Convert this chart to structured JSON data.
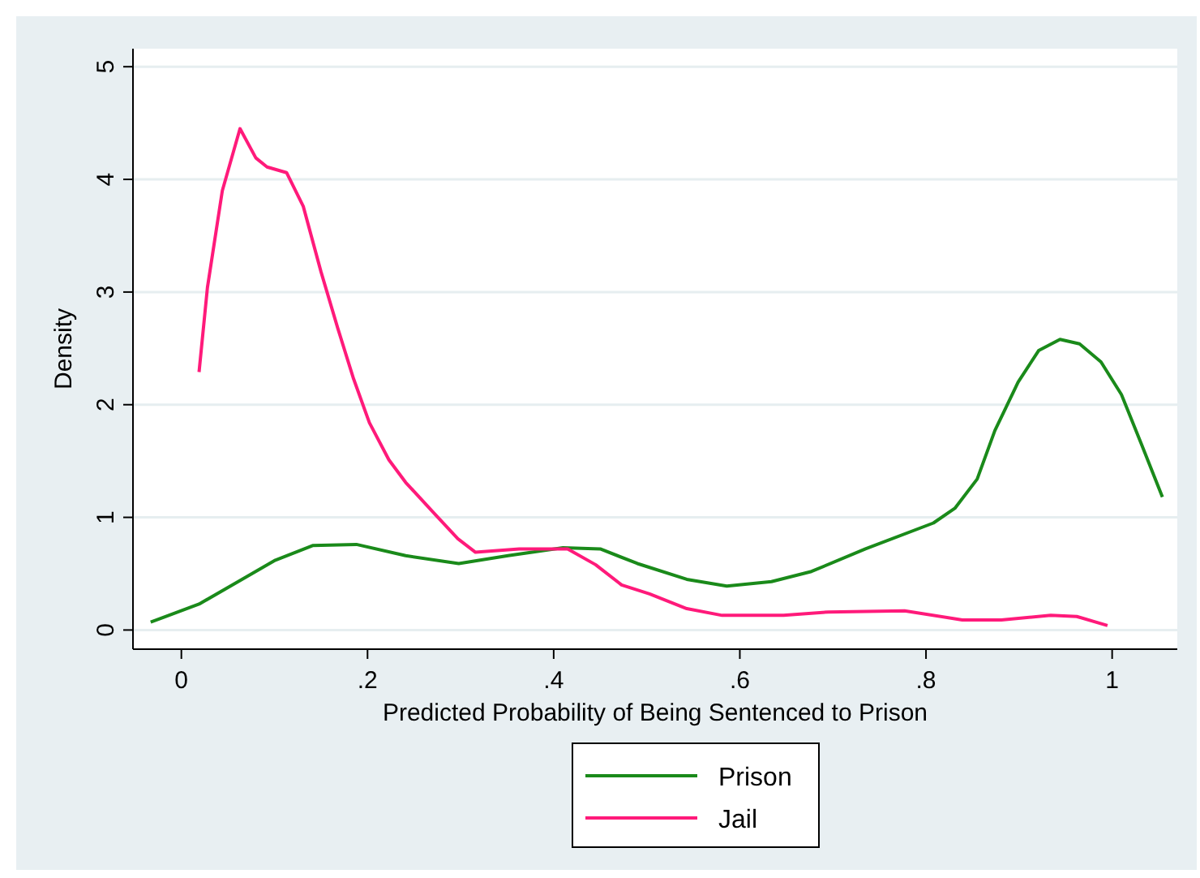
{
  "chart_data": {
    "type": "line",
    "xlabel": "Predicted Probability of Being Sentenced to Prison",
    "ylabel": "Density",
    "xlim": [
      -0.052,
      1.07
    ],
    "ylim": [
      -0.17,
      5.16
    ],
    "xticks": [
      0,
      {
        "value": 0.2,
        "label": ".2"
      },
      {
        "value": 0.4,
        "label": ".4"
      },
      {
        "value": 0.6,
        "label": ".6"
      },
      {
        "value": 0.8,
        "label": ".8"
      },
      1
    ],
    "yticks": [
      0,
      1,
      2,
      3,
      4,
      5
    ],
    "grid": "y",
    "legend": "bottom",
    "marker": "none",
    "line_style": "solid",
    "series": [
      {
        "name": "Prison",
        "color": "#1a8a1a",
        "x": [
          -0.033,
          0.019,
          0.061,
          0.101,
          0.141,
          0.188,
          0.241,
          0.298,
          0.351,
          0.41,
          0.45,
          0.49,
          0.543,
          0.586,
          0.634,
          0.677,
          0.735,
          0.808,
          0.831,
          0.855,
          0.874,
          0.899,
          0.921,
          0.944,
          0.965,
          0.988,
          1.01,
          1.031,
          1.054
        ],
        "values": [
          0.07,
          0.23,
          0.43,
          0.62,
          0.75,
          0.76,
          0.66,
          0.59,
          0.66,
          0.73,
          0.72,
          0.59,
          0.45,
          0.39,
          0.43,
          0.52,
          0.72,
          0.95,
          1.08,
          1.34,
          1.77,
          2.2,
          2.48,
          2.58,
          2.54,
          2.38,
          2.09,
          1.66,
          1.18
        ]
      },
      {
        "name": "Jail",
        "color": "#ff1a7a",
        "x": [
          0.019,
          0.028,
          0.044,
          0.063,
          0.08,
          0.092,
          0.113,
          0.131,
          0.15,
          0.168,
          0.185,
          0.202,
          0.223,
          0.241,
          0.27,
          0.297,
          0.316,
          0.363,
          0.415,
          0.445,
          0.473,
          0.503,
          0.543,
          0.581,
          0.647,
          0.695,
          0.777,
          0.839,
          0.881,
          0.934,
          0.962,
          0.995
        ],
        "values": [
          2.29,
          3.04,
          3.9,
          4.45,
          4.19,
          4.11,
          4.06,
          3.76,
          3.18,
          2.68,
          2.23,
          1.84,
          1.51,
          1.31,
          1.05,
          0.81,
          0.69,
          0.72,
          0.72,
          0.58,
          0.4,
          0.32,
          0.19,
          0.13,
          0.13,
          0.16,
          0.17,
          0.09,
          0.09,
          0.13,
          0.12,
          0.04
        ]
      }
    ]
  }
}
